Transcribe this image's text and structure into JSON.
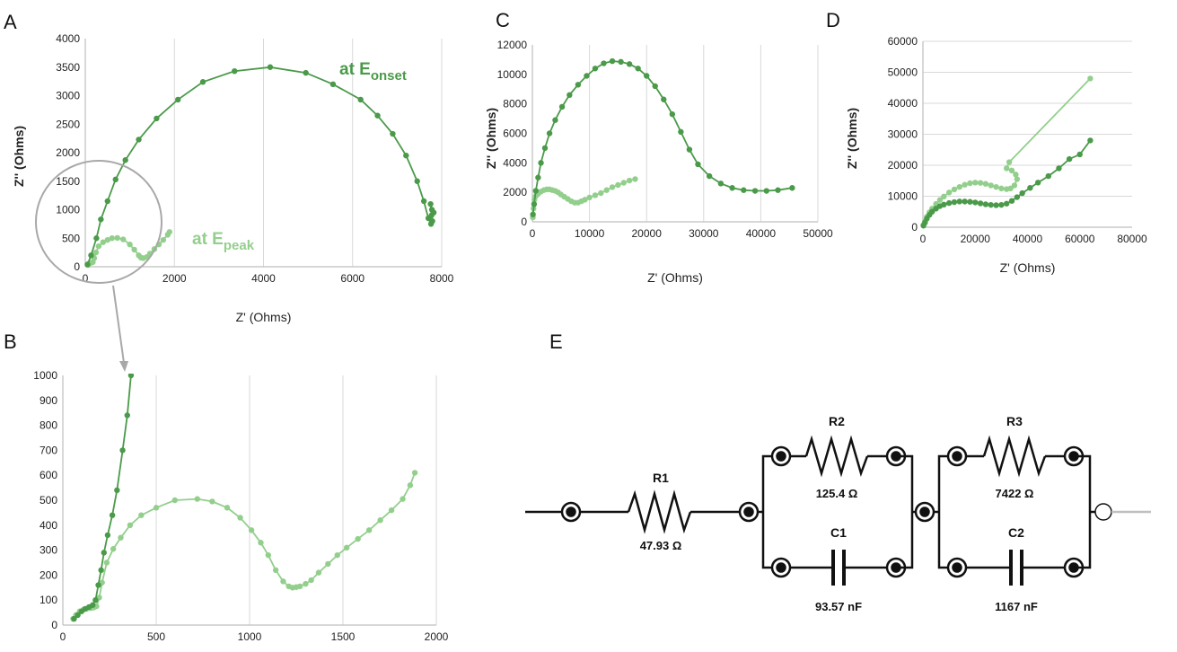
{
  "panels": {
    "A": "A",
    "B": "B",
    "C": "C",
    "D": "D",
    "E": "E"
  },
  "annotations": {
    "onset_prefix": "at E",
    "onset_sub": "onset",
    "peak_prefix": "at E",
    "peak_sub": "peak"
  },
  "colors": {
    "onset": "#4a9a4a",
    "peak": "#93cf8c",
    "grid": "#d9d9d9",
    "axis": "#bfbfbf",
    "circuit": "#111111"
  },
  "circuit": {
    "R1_label": "R1",
    "R1_value": "47.93  Ω",
    "R2_label": "R2",
    "R2_value": "125.4  Ω",
    "R3_label": "R3",
    "R3_value": "7422  Ω",
    "C1_label": "C1",
    "C1_value": "93.57 nF",
    "C2_label": "C2",
    "C2_value": "1167 nF"
  },
  "chart_data": [
    {
      "id": "A",
      "type": "scatter",
      "xlabel": "Z' (Ohms)",
      "ylabel": "Z'' (Ohms)",
      "xlim": [
        0,
        8000
      ],
      "ylim": [
        0,
        4000
      ],
      "xticks": [
        0,
        2000,
        4000,
        6000,
        8000
      ],
      "yticks": [
        0,
        500,
        1000,
        1500,
        2000,
        2500,
        3000,
        3500,
        4000
      ],
      "grid": "vertical",
      "series": [
        {
          "key": "onset",
          "x": [
            50,
            130,
            250,
            350,
            500,
            680,
            900,
            1200,
            1600,
            2080,
            2640,
            3350,
            4150,
            4950,
            5560,
            6180,
            6560,
            6900,
            7200,
            7450,
            7600,
            7700,
            7760,
            7790,
            7770,
            7750,
            7780,
            7820
          ],
          "y": [
            40,
            200,
            500,
            830,
            1150,
            1530,
            1870,
            2230,
            2600,
            2930,
            3240,
            3430,
            3500,
            3400,
            3200,
            2930,
            2650,
            2330,
            1950,
            1500,
            1150,
            850,
            750,
            800,
            900,
            1100,
            1000,
            950
          ]
        },
        {
          "key": "peak",
          "x": [
            60,
            90,
            130,
            170,
            200,
            240,
            300,
            400,
            500,
            600,
            720,
            850,
            1000,
            1100,
            1200,
            1250,
            1300,
            1380,
            1450,
            1550,
            1650,
            1750,
            1850,
            1890
          ],
          "y": [
            30,
            60,
            70,
            80,
            150,
            250,
            360,
            430,
            470,
            500,
            505,
            480,
            390,
            300,
            200,
            160,
            150,
            170,
            230,
            310,
            390,
            470,
            560,
            610
          ]
        }
      ]
    },
    {
      "id": "B",
      "type": "scatter",
      "xlim": [
        0,
        2000
      ],
      "ylim": [
        0,
        1000
      ],
      "xticks": [
        0,
        500,
        1000,
        1500,
        2000
      ],
      "yticks": [
        0,
        100,
        200,
        300,
        400,
        500,
        600,
        700,
        800,
        900,
        1000
      ],
      "grid": "vertical",
      "series": [
        {
          "key": "onset",
          "x": [
            60,
            80,
            100,
            120,
            140,
            160,
            175,
            190,
            205,
            220,
            240,
            265,
            290,
            320,
            345,
            365
          ],
          "y": [
            25,
            40,
            55,
            65,
            72,
            80,
            100,
            160,
            220,
            290,
            360,
            440,
            540,
            700,
            840,
            1000
          ]
        },
        {
          "key": "peak",
          "x": [
            55,
            70,
            90,
            110,
            130,
            150,
            165,
            180,
            195,
            210,
            235,
            270,
            310,
            360,
            420,
            500,
            600,
            720,
            800,
            880,
            950,
            1010,
            1060,
            1100,
            1140,
            1180,
            1210,
            1230,
            1250,
            1270,
            1300,
            1330,
            1370,
            1420,
            1470,
            1520,
            1580,
            1640,
            1700,
            1760,
            1820,
            1860,
            1885
          ],
          "y": [
            25,
            40,
            55,
            62,
            66,
            68,
            70,
            75,
            110,
            170,
            250,
            305,
            350,
            400,
            440,
            470,
            500,
            505,
            495,
            470,
            430,
            380,
            330,
            280,
            220,
            175,
            155,
            150,
            152,
            155,
            165,
            180,
            210,
            245,
            280,
            310,
            345,
            380,
            420,
            460,
            505,
            560,
            610
          ]
        }
      ]
    },
    {
      "id": "C",
      "type": "scatter",
      "xlabel": "Z' (Ohms)",
      "ylabel": "Z'' (Ohms)",
      "xlim": [
        0,
        50000
      ],
      "ylim": [
        0,
        12000
      ],
      "xticks": [
        0,
        10000,
        20000,
        30000,
        40000,
        50000
      ],
      "yticks": [
        0,
        2000,
        4000,
        6000,
        8000,
        10000,
        12000
      ],
      "grid": "vertical",
      "series": [
        {
          "key": "onset",
          "x": [
            100,
            300,
            600,
            1000,
            1500,
            2200,
            3000,
            4000,
            5200,
            6500,
            8000,
            9500,
            11000,
            12500,
            14000,
            15500,
            17000,
            18500,
            20000,
            21500,
            23000,
            24500,
            26000,
            27500,
            29000,
            31000,
            33000,
            35000,
            37000,
            39000,
            41000,
            43000,
            45500
          ],
          "y": [
            500,
            1200,
            2100,
            3000,
            4000,
            5000,
            6000,
            6900,
            7800,
            8600,
            9300,
            9900,
            10400,
            10750,
            10900,
            10850,
            10700,
            10400,
            9900,
            9200,
            8300,
            7300,
            6100,
            4900,
            3900,
            3100,
            2600,
            2300,
            2150,
            2100,
            2100,
            2150,
            2300
          ]
        },
        {
          "key": "peak",
          "x": [
            80,
            200,
            350,
            500,
            700,
            1000,
            1500,
            2000,
            2500,
            3000,
            3500,
            4000,
            4500,
            5000,
            5600,
            6200,
            6800,
            7400,
            8000,
            8600,
            9200,
            10000,
            11000,
            12000,
            13000,
            14000,
            15000,
            16000,
            17000,
            18000
          ],
          "y": [
            300,
            900,
            1500,
            1700,
            1800,
            1900,
            2050,
            2150,
            2200,
            2200,
            2150,
            2100,
            2000,
            1850,
            1700,
            1550,
            1400,
            1300,
            1300,
            1400,
            1500,
            1650,
            1800,
            1950,
            2150,
            2350,
            2500,
            2650,
            2800,
            2900
          ]
        }
      ]
    },
    {
      "id": "D",
      "type": "scatter",
      "xlabel": "Z' (Ohms)",
      "ylabel": "Z'' (Ohms)",
      "xlim": [
        0,
        80000
      ],
      "ylim": [
        0,
        60000
      ],
      "xticks": [
        0,
        20000,
        40000,
        60000,
        80000
      ],
      "yticks": [
        0,
        10000,
        20000,
        30000,
        40000,
        50000,
        60000
      ],
      "grid": "horizontal",
      "series": [
        {
          "key": "onset",
          "x": [
            200,
            800,
            1500,
            2500,
            3500,
            5000,
            6500,
            8000,
            10000,
            12000,
            14000,
            16000,
            18000,
            20000,
            22000,
            24000,
            26000,
            28000,
            30000,
            32000,
            34000,
            36000,
            38000,
            41000,
            44000,
            48000,
            52000,
            56000,
            60000,
            64000
          ],
          "y": [
            500,
            1500,
            2800,
            4000,
            5000,
            6000,
            6800,
            7300,
            7800,
            8100,
            8300,
            8300,
            8200,
            8000,
            7700,
            7400,
            7200,
            7100,
            7200,
            7600,
            8500,
            9700,
            11000,
            12700,
            14400,
            16500,
            19000,
            22000,
            23500,
            28000
          ]
        },
        {
          "key": "peak",
          "x": [
            200,
            800,
            1500,
            2500,
            3500,
            5000,
            6500,
            8000,
            10000,
            12000,
            14000,
            16000,
            18000,
            20000,
            22000,
            24000,
            26000,
            28000,
            30000,
            32000,
            33500,
            35000,
            36000,
            35500,
            34000,
            32000,
            33000,
            64000
          ],
          "y": [
            800,
            2000,
            3400,
            4800,
            6000,
            7500,
            8800,
            9900,
            11200,
            12200,
            13000,
            13700,
            14200,
            14400,
            14300,
            14000,
            13500,
            13000,
            12500,
            12300,
            12500,
            13500,
            15500,
            17000,
            18300,
            19000,
            21000,
            48000
          ]
        }
      ]
    }
  ]
}
